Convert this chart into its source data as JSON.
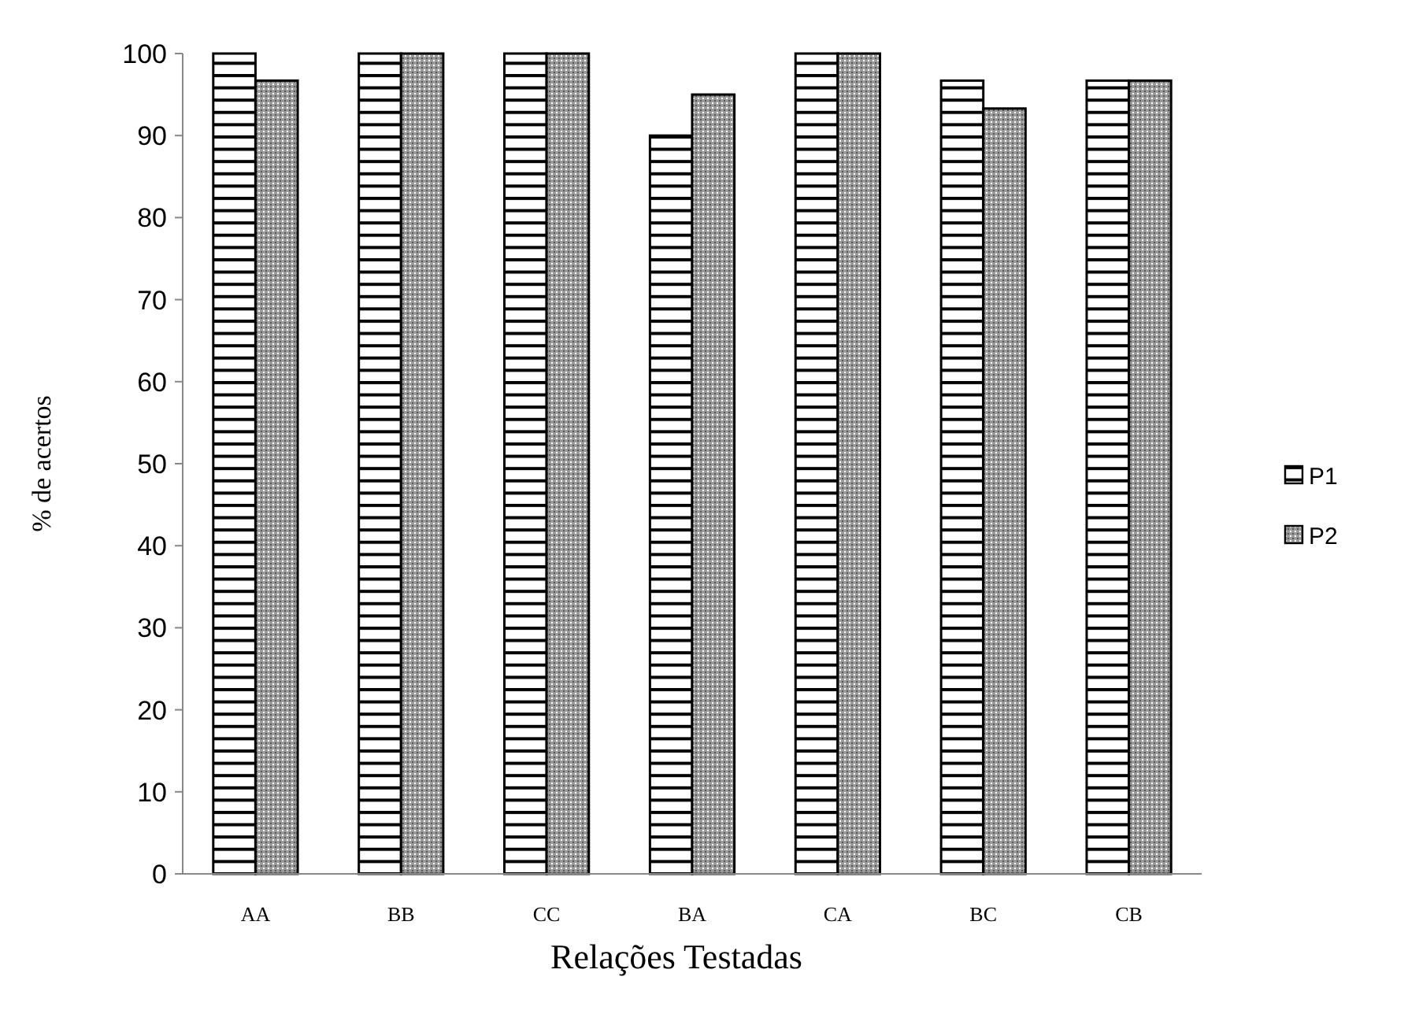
{
  "chart_data": {
    "type": "bar",
    "xlabel": "Relações Testadas",
    "ylabel": "% de acertos",
    "categories": [
      "AA",
      "BB",
      "CC",
      "BA",
      "CA",
      "BC",
      "CB"
    ],
    "series": [
      {
        "name": "P1",
        "values": [
          100,
          100,
          100,
          90,
          100,
          96.7,
          96.7
        ]
      },
      {
        "name": "P2",
        "values": [
          96.7,
          100,
          100,
          95,
          100,
          93.3,
          96.7
        ]
      }
    ],
    "ylim": [
      0,
      100
    ],
    "yticks": [
      0,
      10,
      20,
      30,
      40,
      50,
      60,
      70,
      80,
      90,
      100
    ],
    "grid": false,
    "legend": "right"
  }
}
